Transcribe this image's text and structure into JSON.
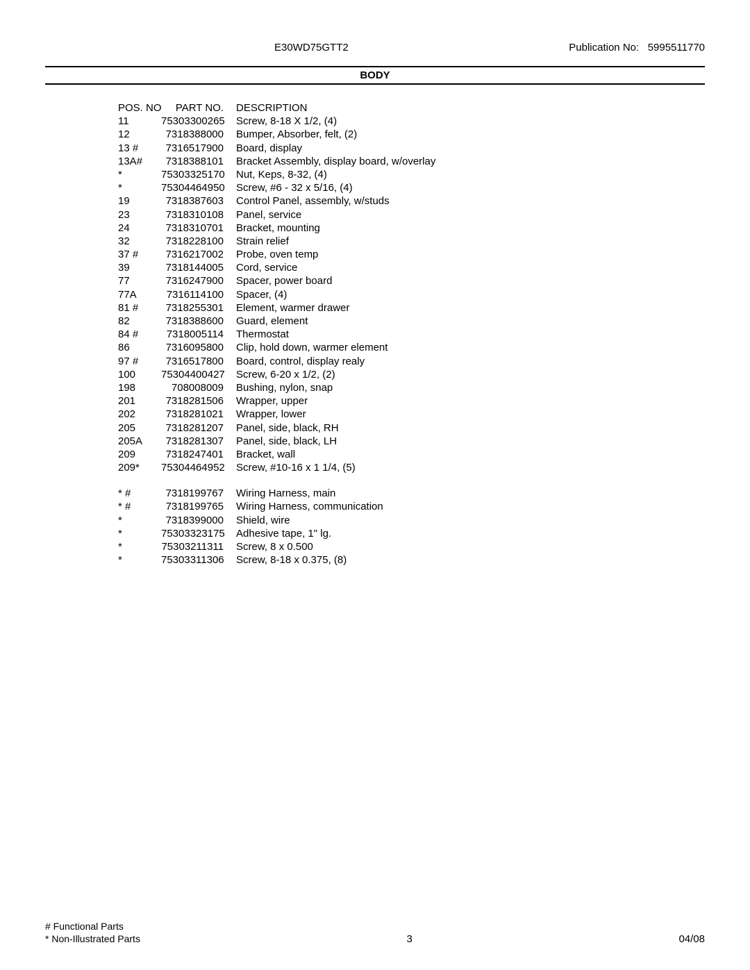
{
  "header": {
    "model": "E30WD75GTT2",
    "publication_label": "Publication No:",
    "publication_no": "5995511770"
  },
  "title": "BODY",
  "columns": {
    "pos": "POS. NO",
    "part": "PART NO.",
    "desc": "DESCRIPTION"
  },
  "rows": [
    {
      "pos": "11",
      "part": "75303300265",
      "desc": "Screw, 8-18 X 1/2, (4)"
    },
    {
      "pos": "12",
      "part": "7318388000",
      "desc": "Bumper, Absorber, felt, (2)"
    },
    {
      "pos": "13 #",
      "part": "7316517900",
      "desc": "Board, display"
    },
    {
      "pos": "13A#",
      "part": "7318388101",
      "desc": "Bracket Assembly, display board, w/overlay"
    },
    {
      "pos": "*",
      "part": "75303325170",
      "desc": "Nut, Keps, 8-32, (4)"
    },
    {
      "pos": "*",
      "part": "75304464950",
      "desc": "Screw, #6 - 32 x 5/16, (4)"
    },
    {
      "pos": "19",
      "part": "7318387603",
      "desc": "Control Panel, assembly, w/studs"
    },
    {
      "pos": "23",
      "part": "7318310108",
      "desc": "Panel, service"
    },
    {
      "pos": "24",
      "part": "7318310701",
      "desc": "Bracket, mounting"
    },
    {
      "pos": "32",
      "part": "7318228100",
      "desc": "Strain relief"
    },
    {
      "pos": "37 #",
      "part": "7316217002",
      "desc": "Probe, oven temp"
    },
    {
      "pos": "39",
      "part": "7318144005",
      "desc": "Cord, service"
    },
    {
      "pos": "77",
      "part": "7316247900",
      "desc": "Spacer, power board"
    },
    {
      "pos": "77A",
      "part": "7316114100",
      "desc": "Spacer, (4)"
    },
    {
      "pos": "81 #",
      "part": "7318255301",
      "desc": "Element, warmer drawer"
    },
    {
      "pos": "82",
      "part": "7318388600",
      "desc": "Guard, element"
    },
    {
      "pos": "84 #",
      "part": "7318005114",
      "desc": "Thermostat"
    },
    {
      "pos": "86",
      "part": "7316095800",
      "desc": "Clip, hold down, warmer element"
    },
    {
      "pos": "97 #",
      "part": "7316517800",
      "desc": "Board, control, display realy"
    },
    {
      "pos": "100",
      "part": "75304400427",
      "desc": "Screw, 6-20 x 1/2, (2)"
    },
    {
      "pos": "198",
      "part": "708008009",
      "desc": "Bushing, nylon, snap"
    },
    {
      "pos": "201",
      "part": "7318281506",
      "desc": "Wrapper, upper"
    },
    {
      "pos": "202",
      "part": "7318281021",
      "desc": "Wrapper, lower"
    },
    {
      "pos": "205",
      "part": "7318281207",
      "desc": "Panel, side, black, RH"
    },
    {
      "pos": "205A",
      "part": "7318281307",
      "desc": "Panel, side, black, LH"
    },
    {
      "pos": "209",
      "part": "7318247401",
      "desc": "Bracket, wall"
    },
    {
      "pos": "209*",
      "part": "75304464952",
      "desc": "Screw, #10-16 x 1 1/4, (5)"
    }
  ],
  "rows2": [
    {
      "pos": "*  #",
      "part": "7318199767",
      "desc": "Wiring Harness, main"
    },
    {
      "pos": "*  #",
      "part": "7318199765",
      "desc": "Wiring Harness, communication"
    },
    {
      "pos": "*",
      "part": "7318399000",
      "desc": "Shield, wire"
    },
    {
      "pos": "*",
      "part": "75303323175",
      "desc": "Adhesive tape, 1\" lg."
    },
    {
      "pos": "*",
      "part": "75303211311",
      "desc": "Screw, 8 x 0.500"
    },
    {
      "pos": "*",
      "part": "75303311306",
      "desc": "Screw, 8-18 x 0.375, (8)"
    }
  ],
  "footer": {
    "functional": "# Functional Parts",
    "nonillustrated": "* Non-Illustrated Parts",
    "page": "3",
    "date": "04/08"
  }
}
